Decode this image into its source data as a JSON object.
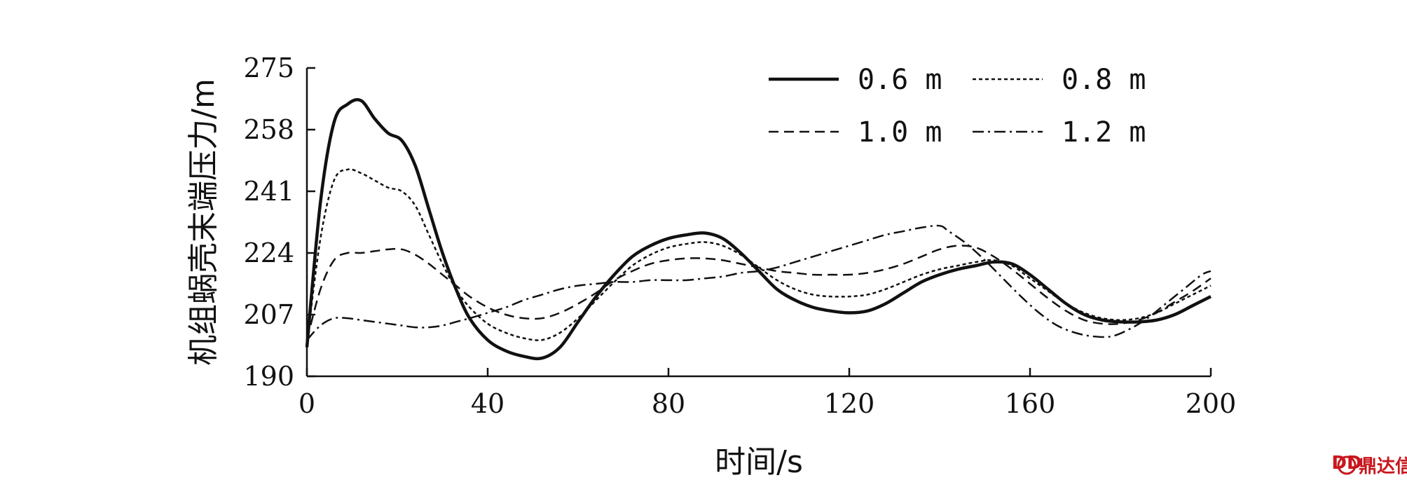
{
  "chart_data": {
    "type": "line",
    "title": "",
    "xlabel": "时间/s",
    "ylabel": "机组蜗壳末端压力/m",
    "xlim": [
      0,
      200
    ],
    "ylim": [
      190,
      275
    ],
    "x_ticks": [
      "0",
      "40",
      "80",
      "120",
      "160",
      "200"
    ],
    "y_ticks": [
      "190",
      "207",
      "224",
      "241",
      "258",
      "275"
    ],
    "grid": false,
    "legend_position": "top-right",
    "series": [
      {
        "name": "0.6 m",
        "style": "solid",
        "x": [
          0,
          3,
          6,
          9,
          12,
          15,
          18,
          21,
          24,
          27,
          30,
          33,
          36,
          40,
          44,
          48,
          52,
          56,
          60,
          64,
          68,
          72,
          76,
          80,
          84,
          88,
          92,
          96,
          100,
          104,
          108,
          112,
          116,
          120,
          124,
          128,
          132,
          136,
          140,
          144,
          148,
          152,
          156,
          160,
          164,
          168,
          172,
          176,
          180,
          184,
          188,
          192,
          196,
          200
        ],
        "y": [
          198,
          238,
          260,
          265,
          266,
          261,
          257,
          255,
          248,
          236,
          224,
          214,
          206,
          200,
          197,
          195.5,
          195,
          198,
          205,
          212,
          218,
          223,
          226,
          228,
          229,
          229.5,
          228,
          224,
          219,
          214,
          211,
          209,
          208,
          207.5,
          208,
          210,
          213,
          216,
          218,
          219.5,
          220.5,
          221.5,
          221,
          218,
          214,
          210,
          207,
          205.5,
          205,
          205,
          205.5,
          207,
          209.5,
          212
        ]
      },
      {
        "name": "0.8 m",
        "style": "dotted",
        "x": [
          0,
          3,
          6,
          9,
          12,
          15,
          18,
          21,
          24,
          27,
          30,
          33,
          36,
          40,
          44,
          48,
          52,
          56,
          60,
          64,
          68,
          72,
          76,
          80,
          84,
          88,
          92,
          96,
          100,
          104,
          108,
          112,
          116,
          120,
          124,
          128,
          132,
          136,
          140,
          144,
          148,
          152,
          156,
          160,
          164,
          168,
          172,
          176,
          180,
          184,
          188,
          192,
          196,
          200
        ],
        "y": [
          199,
          228,
          244,
          247,
          246,
          244,
          242,
          241,
          237,
          229,
          221,
          214,
          209,
          204.5,
          202,
          200.5,
          200,
          202,
          206,
          211,
          216,
          220.5,
          223.5,
          225.5,
          226.5,
          227,
          226,
          223.5,
          220,
          216.5,
          214,
          212.5,
          212,
          212,
          212.5,
          214,
          216,
          218,
          219.5,
          220.5,
          221.5,
          222,
          220.5,
          217,
          213.5,
          210,
          207.5,
          206,
          205.5,
          206,
          207.5,
          210,
          212.5,
          215
        ]
      },
      {
        "name": "1.0 m",
        "style": "dashed",
        "x": [
          0,
          3,
          6,
          9,
          12,
          15,
          18,
          21,
          24,
          27,
          30,
          33,
          36,
          40,
          44,
          48,
          52,
          56,
          60,
          64,
          68,
          72,
          76,
          80,
          84,
          88,
          92,
          96,
          100,
          104,
          108,
          112,
          116,
          120,
          124,
          128,
          132,
          136,
          140,
          144,
          148,
          152,
          156,
          160,
          164,
          168,
          172,
          176,
          180,
          184,
          188,
          192,
          196,
          200
        ],
        "y": [
          200,
          214,
          222,
          224,
          224,
          224.5,
          225,
          225,
          223.5,
          221,
          218,
          215,
          212,
          209,
          207,
          206,
          206,
          207.5,
          210,
          213,
          216.5,
          219,
          221,
          222,
          222.5,
          222.5,
          222,
          221,
          220,
          219,
          218.5,
          218,
          218,
          218,
          218.5,
          219.5,
          221,
          223,
          225,
          226,
          225.5,
          223,
          219.5,
          215.5,
          211.5,
          208,
          205.5,
          204.5,
          204.5,
          205.5,
          207.5,
          210.5,
          213.5,
          217
        ]
      },
      {
        "name": "1.2 m",
        "style": "dashdot",
        "x": [
          0,
          3,
          6,
          9,
          12,
          15,
          18,
          21,
          24,
          27,
          30,
          33,
          36,
          40,
          44,
          48,
          52,
          56,
          60,
          64,
          68,
          72,
          76,
          80,
          84,
          88,
          92,
          96,
          100,
          104,
          108,
          112,
          116,
          120,
          124,
          128,
          132,
          136,
          140,
          142,
          146,
          150,
          154,
          158,
          162,
          166,
          170,
          174,
          178,
          182,
          186,
          190,
          194,
          198,
          200
        ],
        "y": [
          200,
          204,
          206,
          206,
          205.5,
          205,
          204.5,
          204,
          203.5,
          203.5,
          204,
          205,
          206,
          207.5,
          209,
          211,
          212.5,
          214,
          215,
          215.5,
          216,
          216,
          216.5,
          216.5,
          216.5,
          217,
          217.5,
          218.5,
          219,
          220,
          221.5,
          223,
          224.5,
          226,
          227.5,
          229,
          230,
          231,
          231.5,
          230,
          226.5,
          222,
          217,
          212,
          207.5,
          204,
          202,
          201,
          201,
          203,
          206,
          210,
          214,
          218,
          219
        ]
      }
    ]
  },
  "watermark": {
    "icon": "dingda-logo-icon",
    "text": "鼎达信",
    "color": "#c8161d"
  }
}
